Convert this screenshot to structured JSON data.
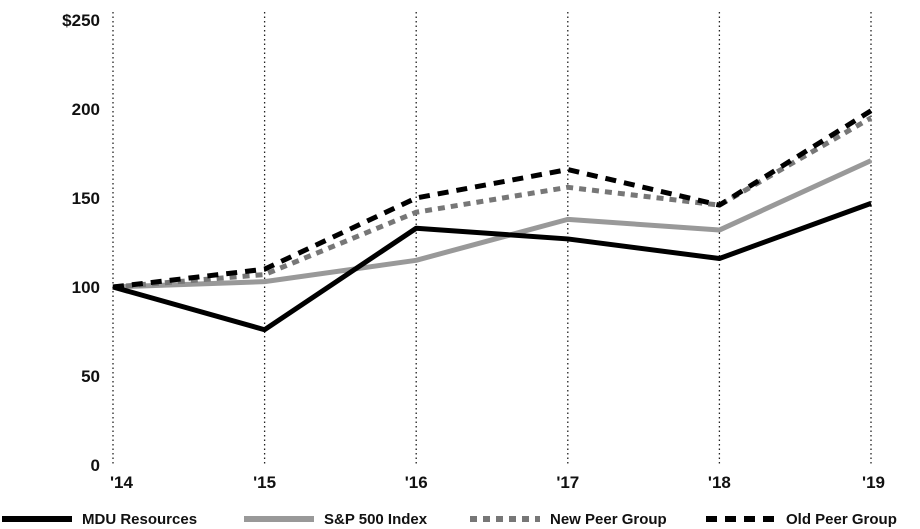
{
  "chart_data": {
    "type": "line",
    "title": "",
    "xlabel": "",
    "ylabel": "",
    "categories": [
      "'14",
      "'15",
      "'16",
      "'17",
      "'18",
      "'19"
    ],
    "y_ticks": [
      "0",
      "50",
      "100",
      "150",
      "200",
      "$250"
    ],
    "ylim": [
      0,
      250
    ],
    "grid": "vertical-dotted",
    "legend_position": "bottom",
    "series": [
      {
        "name": "MDU Resources",
        "values": [
          100,
          76,
          133,
          127,
          116,
          147
        ],
        "color": "#000000",
        "style": "solid"
      },
      {
        "name": "S&P 500 Index",
        "values": [
          100,
          103,
          115,
          138,
          132,
          171
        ],
        "color": "#999999",
        "style": "solid"
      },
      {
        "name": "New Peer Group",
        "values": [
          100,
          107,
          142,
          156,
          146,
          195
        ],
        "color": "#777777",
        "style": "dotted"
      },
      {
        "name": "Old Peer Group",
        "values": [
          100,
          110,
          150,
          166,
          146,
          199
        ],
        "color": "#000000",
        "style": "dashed"
      }
    ]
  }
}
